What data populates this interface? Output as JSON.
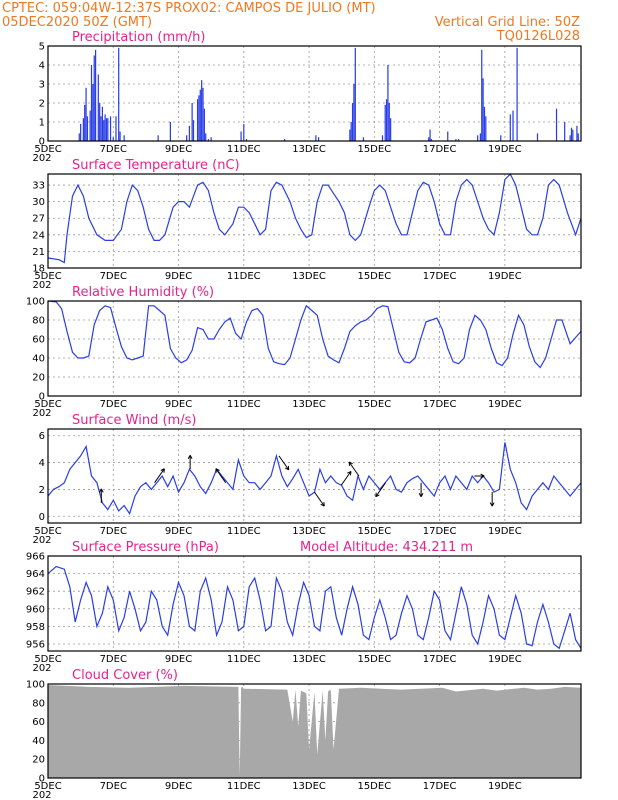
{
  "header": {
    "line1_left": "CPTEC:   059:04W-12:37S   PROX02: CAMPOS DE JULIO (MT)",
    "line2_left": "05DEC2020 50Z (GMT)",
    "line2_right": "Vertical Grid Line: 50Z",
    "line3_right": "TQ0126L028"
  },
  "x_axis": {
    "tick_labels": [
      "5DEC",
      "7DEC",
      "9DEC",
      "11DEC",
      "13DEC",
      "15DEC",
      "17DEC",
      "19DEC"
    ],
    "year_stub": "202"
  },
  "colors": {
    "line": "#2a3ee8",
    "cloud": "#a8a8a8",
    "header": "#f0781e",
    "title": "#e6238c"
  },
  "chart_data": [
    {
      "type": "bar",
      "title": "Precipitation (mm/h)",
      "ylim": [
        0,
        5
      ],
      "yticks": [
        "0",
        "1",
        "2",
        "3",
        "4",
        "5"
      ],
      "x_unit": "hours since 05DEC2020 00Z",
      "x": [
        23,
        24,
        26,
        27,
        28,
        29,
        31,
        32,
        33,
        34,
        35,
        37,
        38,
        39,
        40,
        41,
        42,
        43,
        44,
        46,
        48,
        50,
        52,
        53,
        56,
        81,
        90,
        102,
        104,
        106,
        107,
        110,
        111,
        112,
        113,
        114,
        115,
        116,
        118,
        120,
        142,
        144,
        146,
        174,
        197,
        199,
        222,
        223,
        224,
        225,
        226,
        232,
        246,
        248,
        249,
        250,
        251,
        252,
        280,
        281,
        282,
        294,
        300,
        302,
        316,
        318,
        319,
        320,
        321,
        322,
        333,
        340,
        342,
        345,
        360,
        374,
        380,
        384,
        385,
        386,
        389,
        390
      ],
      "values": [
        0.4,
        0.9,
        1.2,
        1.9,
        2.8,
        1.3,
        1.6,
        4.0,
        3.0,
        4.5,
        4.8,
        3.5,
        2.0,
        1.3,
        1.8,
        1.1,
        1.4,
        1.2,
        1.2,
        1.3,
        0.2,
        1.3,
        4.9,
        0.5,
        0.3,
        0.3,
        1.0,
        0.3,
        0.8,
        2.0,
        1.1,
        2.2,
        2.4,
        2.7,
        3.2,
        2.8,
        1.7,
        0.4,
        0.1,
        0.2,
        0.5,
        0.9,
        0.1,
        0.1,
        0.3,
        0.2,
        0.6,
        1.0,
        2.0,
        3.0,
        4.9,
        0.2,
        0.3,
        1.9,
        2.2,
        4.0,
        2.0,
        1.2,
        0.2,
        0.6,
        0.1,
        0.5,
        0.1,
        0.1,
        0.3,
        0.4,
        4.8,
        3.3,
        1.8,
        1.3,
        0.3,
        1.4,
        1.6,
        4.9,
        0.4,
        1.7,
        1.0,
        0.3,
        0.7,
        0.6,
        0.8,
        0.4
      ]
    },
    {
      "type": "line",
      "title": "Surface Temperature (nC)",
      "ylim": [
        18,
        35
      ],
      "yticks": [
        "18",
        "21",
        "24",
        "27",
        "30",
        "33"
      ],
      "x_unit": "hours since 05DEC2020 00Z",
      "x": [
        0,
        8,
        12,
        14,
        18,
        22,
        26,
        30,
        36,
        42,
        48,
        54,
        58,
        62,
        66,
        70,
        74,
        78,
        82,
        86,
        92,
        96,
        100,
        104,
        110,
        114,
        118,
        122,
        126,
        130,
        136,
        140,
        144,
        148,
        152,
        156,
        160,
        164,
        168,
        172,
        178,
        182,
        186,
        190,
        194,
        198,
        202,
        206,
        210,
        214,
        218,
        222,
        226,
        230,
        236,
        240,
        244,
        248,
        252,
        256,
        260,
        264,
        268,
        272,
        276,
        280,
        284,
        288,
        292,
        296,
        300,
        304,
        308,
        312,
        316,
        320,
        324,
        328,
        332,
        336,
        340,
        344,
        348,
        352,
        356,
        360,
        364,
        368,
        372,
        376,
        382,
        388,
        392
      ],
      "values": [
        19.8,
        19.5,
        19.0,
        24.0,
        31.0,
        33.0,
        31.0,
        27.0,
        24.0,
        23.0,
        23.0,
        25.0,
        30.0,
        33.0,
        32.0,
        29.0,
        25.0,
        23.0,
        23.0,
        24.0,
        29.0,
        30.0,
        30.0,
        29.0,
        33.0,
        33.5,
        32.0,
        28.0,
        25.0,
        24.0,
        26.0,
        29.0,
        29.0,
        28.0,
        26.0,
        24.0,
        25.0,
        32.0,
        33.5,
        33.0,
        30.0,
        27.0,
        25.0,
        23.5,
        24.0,
        30.0,
        33.0,
        33.0,
        31.5,
        30.0,
        28.0,
        24.0,
        23.0,
        24.0,
        29.0,
        32.0,
        33.0,
        32.0,
        29.0,
        26.0,
        24.0,
        24.0,
        28.0,
        32.0,
        33.5,
        33.0,
        30.0,
        26.0,
        24.0,
        24.0,
        30.0,
        33.0,
        34.0,
        33.0,
        30.0,
        27.0,
        25.0,
        24.0,
        28.0,
        34.0,
        35.0,
        33.0,
        29.0,
        25.0,
        24.0,
        24.0,
        27.0,
        33.0,
        34.0,
        33.0,
        28.0,
        24.0,
        27.0
      ]
    },
    {
      "type": "line",
      "title": "Relative Humidity (%)",
      "ylim": [
        0,
        100
      ],
      "yticks": [
        "0",
        "20",
        "40",
        "60",
        "80",
        "100"
      ],
      "x_unit": "hours since 05DEC2020 00Z",
      "x": [
        0,
        6,
        10,
        14,
        18,
        22,
        26,
        30,
        34,
        38,
        42,
        46,
        50,
        54,
        58,
        62,
        66,
        70,
        74,
        78,
        82,
        86,
        90,
        94,
        98,
        102,
        106,
        110,
        114,
        118,
        122,
        126,
        130,
        134,
        138,
        142,
        146,
        150,
        154,
        158,
        162,
        166,
        170,
        174,
        178,
        182,
        186,
        190,
        194,
        198,
        202,
        206,
        210,
        214,
        218,
        222,
        226,
        230,
        234,
        238,
        242,
        246,
        250,
        254,
        258,
        262,
        266,
        270,
        274,
        278,
        282,
        286,
        290,
        294,
        298,
        302,
        306,
        310,
        314,
        318,
        322,
        326,
        330,
        334,
        338,
        342,
        346,
        350,
        354,
        358,
        362,
        366,
        370,
        374,
        378,
        384,
        392
      ],
      "values": [
        100,
        99,
        92,
        68,
        46,
        40,
        40,
        42,
        75,
        90,
        95,
        93,
        72,
        52,
        40,
        38,
        40,
        42,
        95,
        95,
        90,
        85,
        50,
        40,
        35,
        38,
        48,
        72,
        70,
        60,
        60,
        70,
        78,
        82,
        66,
        60,
        78,
        90,
        92,
        85,
        50,
        36,
        34,
        33,
        40,
        60,
        80,
        95,
        90,
        85,
        60,
        42,
        38,
        35,
        50,
        68,
        74,
        78,
        80,
        85,
        92,
        95,
        94,
        70,
        46,
        36,
        35,
        40,
        60,
        78,
        80,
        82,
        70,
        50,
        36,
        34,
        40,
        70,
        85,
        80,
        70,
        50,
        35,
        32,
        40,
        65,
        85,
        75,
        52,
        36,
        30,
        40,
        60,
        80,
        80,
        55,
        68
      ]
    },
    {
      "type": "line",
      "title": "Surface Wind (m/s)",
      "ylim": [
        -0.5,
        6.5
      ],
      "yticks": [
        "0",
        "2",
        "4",
        "6"
      ],
      "x_unit": "hours since 05DEC2020 00Z",
      "x": [
        0,
        4,
        8,
        12,
        16,
        20,
        24,
        28,
        32,
        36,
        40,
        44,
        48,
        52,
        56,
        60,
        64,
        68,
        72,
        76,
        80,
        84,
        88,
        92,
        96,
        100,
        104,
        108,
        112,
        116,
        120,
        124,
        128,
        132,
        136,
        140,
        144,
        148,
        152,
        156,
        160,
        164,
        168,
        172,
        176,
        180,
        184,
        188,
        192,
        196,
        200,
        204,
        208,
        212,
        216,
        220,
        224,
        228,
        232,
        236,
        240,
        244,
        248,
        252,
        256,
        260,
        264,
        268,
        272,
        276,
        280,
        284,
        288,
        292,
        296,
        300,
        304,
        308,
        312,
        316,
        320,
        324,
        328,
        332,
        336,
        340,
        344,
        348,
        352,
        356,
        360,
        364,
        368,
        372,
        376,
        380,
        384,
        388,
        392
      ],
      "values": [
        1.5,
        2.0,
        2.2,
        2.5,
        3.5,
        4.0,
        4.5,
        5.2,
        3.0,
        2.5,
        1.0,
        0.5,
        1.2,
        0.4,
        0.8,
        0.2,
        1.5,
        2.2,
        2.5,
        2.0,
        2.5,
        3.0,
        2.2,
        3.0,
        1.8,
        2.5,
        3.5,
        3.0,
        2.2,
        1.7,
        2.5,
        3.5,
        3.0,
        2.5,
        2.0,
        4.2,
        3.0,
        2.5,
        2.5,
        2.0,
        2.5,
        3.0,
        4.5,
        3.0,
        2.2,
        2.8,
        3.5,
        2.5,
        1.5,
        1.8,
        3.5,
        2.5,
        3.0,
        2.5,
        2.3,
        1.5,
        1.2,
        3.0,
        2.0,
        3.0,
        2.5,
        2.0,
        2.5,
        3.0,
        2.0,
        1.8,
        2.5,
        2.8,
        3.0,
        2.5,
        2.0,
        1.5,
        2.5,
        3.0,
        2.0,
        3.0,
        2.5,
        2.0,
        3.0,
        2.5,
        3.0,
        2.5,
        1.8,
        2.0,
        5.5,
        3.5,
        2.5,
        1.0,
        0.5,
        1.5,
        2.0,
        2.5,
        2.0,
        3.0,
        2.5,
        2.0,
        1.5,
        2.0,
        2.5
      ]
    },
    {
      "type": "line",
      "title": "Surface Pressure (hPa)",
      "ylim": [
        955.2,
        966
      ],
      "yticks": [
        "956",
        "958",
        "960",
        "962",
        "964",
        "966"
      ],
      "x_unit": "hours since 05DEC2020 00Z",
      "x": [
        0,
        6,
        12,
        16,
        20,
        24,
        28,
        32,
        36,
        40,
        44,
        48,
        52,
        56,
        60,
        64,
        68,
        72,
        76,
        80,
        84,
        88,
        92,
        96,
        100,
        104,
        108,
        112,
        116,
        120,
        124,
        128,
        132,
        136,
        140,
        144,
        148,
        152,
        156,
        160,
        164,
        168,
        172,
        176,
        180,
        184,
        188,
        192,
        196,
        200,
        204,
        208,
        212,
        216,
        220,
        224,
        228,
        232,
        236,
        240,
        244,
        248,
        252,
        256,
        260,
        264,
        268,
        272,
        276,
        280,
        284,
        288,
        292,
        296,
        300,
        304,
        308,
        312,
        316,
        320,
        324,
        328,
        332,
        336,
        340,
        344,
        348,
        352,
        356,
        360,
        364,
        368,
        372,
        376,
        380,
        384,
        388,
        392
      ],
      "values": [
        964.0,
        964.8,
        964.5,
        962.5,
        958.5,
        961.0,
        963.0,
        961.5,
        958.0,
        959.5,
        962.5,
        961.0,
        957.5,
        959.0,
        962.0,
        960.0,
        957.5,
        958.5,
        962.0,
        961.0,
        958.0,
        957.0,
        960.5,
        963.0,
        961.5,
        958.0,
        957.5,
        962.0,
        963.5,
        961.0,
        957.0,
        958.5,
        962.5,
        961.0,
        957.5,
        958.0,
        962.5,
        963.5,
        961.0,
        957.5,
        958.0,
        963.5,
        962.0,
        958.5,
        957.0,
        960.5,
        963.0,
        961.5,
        958.0,
        957.5,
        962.0,
        962.5,
        959.0,
        957.0,
        960.0,
        962.5,
        960.5,
        957.0,
        956.5,
        959.0,
        961.0,
        959.0,
        956.5,
        957.0,
        959.5,
        961.5,
        960.0,
        957.0,
        956.5,
        959.0,
        962.0,
        961.0,
        957.5,
        956.5,
        959.5,
        962.5,
        960.5,
        957.0,
        956.0,
        958.5,
        961.5,
        960.0,
        957.0,
        956.5,
        959.0,
        961.5,
        959.5,
        956.0,
        955.8,
        958.5,
        960.5,
        958.5,
        956.0,
        955.5,
        957.5,
        959.5,
        956.5,
        955.5
      ]
    },
    {
      "type": "area",
      "title": "Cloud Cover (%)",
      "ylim": [
        0,
        100
      ],
      "yticks": [
        "0",
        "20",
        "40",
        "60",
        "80",
        "100"
      ],
      "x_unit": "hours since 05DEC2020 00Z",
      "x": [
        0,
        30,
        60,
        100,
        140,
        141,
        142,
        143,
        144,
        176,
        180,
        182,
        184,
        186,
        190,
        192,
        196,
        198,
        202,
        204,
        206,
        208,
        210,
        214,
        230,
        260,
        290,
        300,
        320,
        330,
        350,
        360,
        370,
        380,
        392
      ],
      "values": [
        99,
        97,
        96,
        98,
        97,
        2,
        96,
        97,
        95,
        94,
        60,
        94,
        55,
        93,
        90,
        30,
        92,
        25,
        93,
        40,
        92,
        94,
        30,
        95,
        96,
        94,
        96,
        92,
        95,
        93,
        96,
        94,
        95,
        97,
        96
      ]
    }
  ],
  "panel_extra": {
    "pressure_right": "Model Altitude: 434.211 m"
  }
}
